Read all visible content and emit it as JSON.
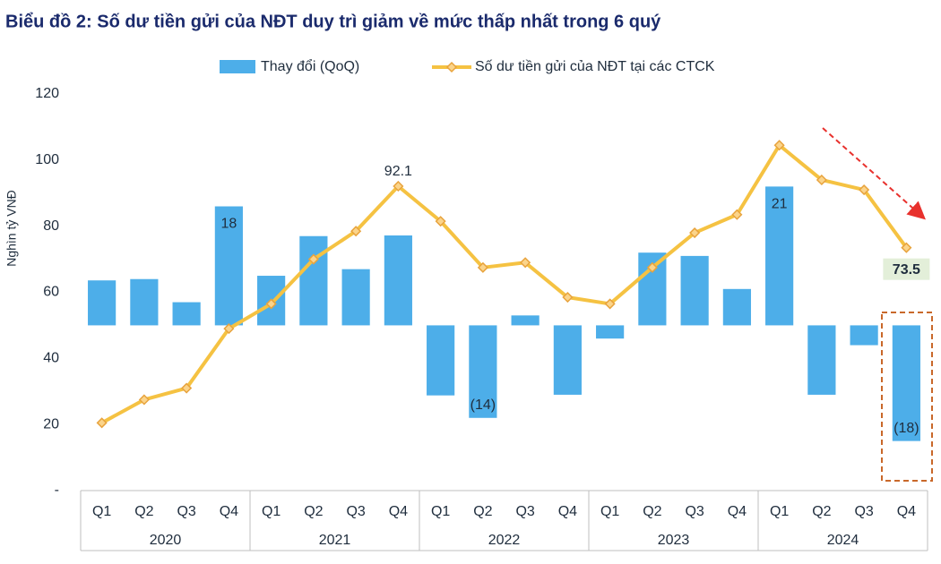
{
  "chart_data": {
    "type": "bar-line",
    "title": "Biểu đồ 2: Số dư tiền gửi của NĐT duy trì giảm về mức thấp nhất trong 6 quý",
    "y_label": "Nghìn tỷ VNĐ",
    "categories": [
      "Q1",
      "Q2",
      "Q3",
      "Q4",
      "Q1",
      "Q2",
      "Q3",
      "Q4",
      "Q1",
      "Q2",
      "Q3",
      "Q4",
      "Q1",
      "Q2",
      "Q3",
      "Q4",
      "Q1",
      "Q2",
      "Q3",
      "Q4"
    ],
    "years": [
      "2020",
      "2021",
      "2022",
      "2023",
      "2024"
    ],
    "ylim": [
      0,
      120
    ],
    "yticks": [
      {
        "value": 0,
        "label": "-"
      },
      20,
      40,
      60,
      80,
      100,
      120
    ],
    "y2lim": [
      -25,
      35
    ],
    "series": [
      {
        "name": "Thay đổi (QoQ)",
        "kind": "bar",
        "axis": "y2",
        "color": "#4daee9",
        "values": [
          6.8,
          7,
          3.5,
          18,
          7.5,
          13.5,
          8.5,
          13.6,
          -10.6,
          -14,
          1.5,
          -10.5,
          -2,
          11,
          10.5,
          5.5,
          21,
          -10.5,
          -3,
          -17.5
        ],
        "value_labels": [
          null,
          null,
          null,
          "18",
          null,
          null,
          null,
          null,
          null,
          "(14)",
          null,
          null,
          null,
          null,
          null,
          null,
          "21",
          null,
          null,
          "(18)"
        ]
      },
      {
        "name": "Số dư tiền gửi của NĐT tại các CTCK",
        "kind": "line",
        "color": "#f5c242",
        "marker_color": "#e8a33d",
        "values": [
          20.5,
          27.5,
          31,
          49,
          56.5,
          70,
          78.5,
          92.1,
          81.5,
          67.5,
          69,
          58.5,
          56.5,
          67.5,
          78,
          83.5,
          104.5,
          94,
          91,
          73.5
        ],
        "value_labels": [
          null,
          null,
          null,
          null,
          null,
          null,
          null,
          "92.1",
          null,
          null,
          null,
          null,
          null,
          null,
          null,
          null,
          null,
          null,
          null,
          "73.5"
        ]
      }
    ]
  }
}
